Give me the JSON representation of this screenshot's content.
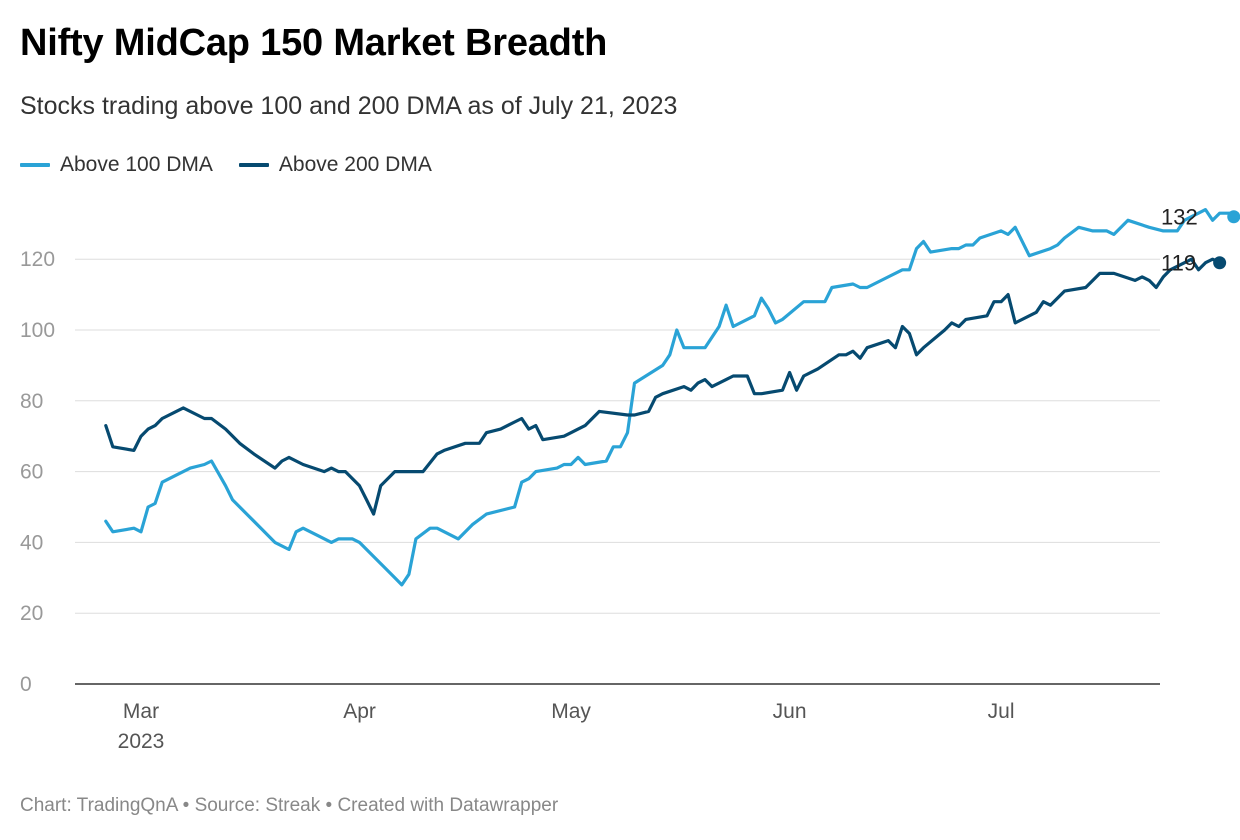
{
  "header": {
    "title": "Nifty MidCap 150 Market Breadth",
    "subtitle": "Stocks trading above 100 and 200 DMA as of July 21, 2023"
  },
  "footer": {
    "credit": "Chart: TradingQnA • Source: Streak • Created with Datawrapper"
  },
  "colors": {
    "above_100": "#2aa3d6",
    "above_200": "#064a70",
    "grid": "#dddddd",
    "axis": "#333333"
  },
  "chart_data": {
    "type": "line",
    "title": "Nifty MidCap 150 Market Breadth",
    "subtitle": "Stocks trading above 100 and 200 DMA as of July 21, 2023",
    "legend_position": "top-left",
    "grid": true,
    "ylim": [
      0,
      140
    ],
    "yticks": [
      0,
      20,
      40,
      60,
      80,
      100,
      120
    ],
    "xlim": [
      "2023-02-23",
      "2023-07-29"
    ],
    "xticks": [
      {
        "date": "2023-03-01",
        "label": "Mar",
        "sublabel": "2023"
      },
      {
        "date": "2023-04-01",
        "label": "Apr",
        "sublabel": ""
      },
      {
        "date": "2023-05-01",
        "label": "May",
        "sublabel": ""
      },
      {
        "date": "2023-06-01",
        "label": "Jun",
        "sublabel": ""
      },
      {
        "date": "2023-07-01",
        "label": "Jul",
        "sublabel": ""
      }
    ],
    "series": [
      {
        "name": "Above 100 DMA",
        "color": "#2aa3d6",
        "end_label": "132",
        "points": [
          [
            "2023-02-24",
            46
          ],
          [
            "2023-02-25",
            43
          ],
          [
            "2023-02-28",
            44
          ],
          [
            "2023-03-01",
            43
          ],
          [
            "2023-03-02",
            50
          ],
          [
            "2023-03-03",
            51
          ],
          [
            "2023-03-04",
            57
          ],
          [
            "2023-03-06",
            59
          ],
          [
            "2023-03-08",
            61
          ],
          [
            "2023-03-10",
            62
          ],
          [
            "2023-03-11",
            63
          ],
          [
            "2023-03-13",
            56
          ],
          [
            "2023-03-14",
            52
          ],
          [
            "2023-03-16",
            48
          ],
          [
            "2023-03-18",
            44
          ],
          [
            "2023-03-20",
            40
          ],
          [
            "2023-03-22",
            38
          ],
          [
            "2023-03-23",
            43
          ],
          [
            "2023-03-24",
            44
          ],
          [
            "2023-03-26",
            42
          ],
          [
            "2023-03-28",
            40
          ],
          [
            "2023-03-29",
            41
          ],
          [
            "2023-03-31",
            41
          ],
          [
            "2023-04-01",
            40
          ],
          [
            "2023-04-02",
            38
          ],
          [
            "2023-04-04",
            34
          ],
          [
            "2023-04-06",
            30
          ],
          [
            "2023-04-07",
            28
          ],
          [
            "2023-04-08",
            31
          ],
          [
            "2023-04-09",
            41
          ],
          [
            "2023-04-11",
            44
          ],
          [
            "2023-04-12",
            44
          ],
          [
            "2023-04-14",
            42
          ],
          [
            "2023-04-15",
            41
          ],
          [
            "2023-04-17",
            45
          ],
          [
            "2023-04-19",
            48
          ],
          [
            "2023-04-23",
            50
          ],
          [
            "2023-04-24",
            57
          ],
          [
            "2023-04-25",
            58
          ],
          [
            "2023-04-26",
            60
          ],
          [
            "2023-04-29",
            61
          ],
          [
            "2023-04-30",
            62
          ],
          [
            "2023-05-01",
            62
          ],
          [
            "2023-05-02",
            64
          ],
          [
            "2023-05-03",
            62
          ],
          [
            "2023-05-06",
            63
          ],
          [
            "2023-05-07",
            67
          ],
          [
            "2023-05-08",
            67
          ],
          [
            "2023-05-09",
            71
          ],
          [
            "2023-05-10",
            85
          ],
          [
            "2023-05-14",
            90
          ],
          [
            "2023-05-15",
            93
          ],
          [
            "2023-05-16",
            100
          ],
          [
            "2023-05-17",
            95
          ],
          [
            "2023-05-20",
            95
          ],
          [
            "2023-05-22",
            101
          ],
          [
            "2023-05-23",
            107
          ],
          [
            "2023-05-24",
            101
          ],
          [
            "2023-05-27",
            104
          ],
          [
            "2023-05-28",
            109
          ],
          [
            "2023-05-29",
            106
          ],
          [
            "2023-05-30",
            102
          ],
          [
            "2023-05-31",
            103
          ],
          [
            "2023-06-03",
            108
          ],
          [
            "2023-06-06",
            108
          ],
          [
            "2023-06-07",
            112
          ],
          [
            "2023-06-10",
            113
          ],
          [
            "2023-06-11",
            112
          ],
          [
            "2023-06-12",
            112
          ],
          [
            "2023-06-17",
            117
          ],
          [
            "2023-06-18",
            117
          ],
          [
            "2023-06-19",
            123
          ],
          [
            "2023-06-20",
            125
          ],
          [
            "2023-06-21",
            122
          ],
          [
            "2023-06-24",
            123
          ],
          [
            "2023-06-25",
            123
          ],
          [
            "2023-06-26",
            124
          ],
          [
            "2023-06-27",
            124
          ],
          [
            "2023-06-28",
            126
          ],
          [
            "2023-07-01",
            128
          ],
          [
            "2023-07-02",
            127
          ],
          [
            "2023-07-03",
            129
          ],
          [
            "2023-07-05",
            121
          ],
          [
            "2023-07-08",
            123
          ],
          [
            "2023-07-09",
            124
          ],
          [
            "2023-07-10",
            126
          ],
          [
            "2023-07-12",
            129
          ],
          [
            "2023-07-14",
            128
          ],
          [
            "2023-07-16",
            128
          ],
          [
            "2023-07-17",
            127
          ],
          [
            "2023-07-19",
            131
          ],
          [
            "2023-07-22",
            129
          ],
          [
            "2023-07-24",
            128
          ],
          [
            "2023-07-26",
            128
          ],
          [
            "2023-07-27",
            131
          ],
          [
            "2023-07-30",
            134
          ],
          [
            "2023-07-31",
            131
          ],
          [
            "2023-08-01",
            133
          ],
          [
            "2023-08-03",
            133
          ],
          [
            "2023-08-03",
            132
          ]
        ]
      },
      {
        "name": "Above 200 DMA",
        "color": "#064a70",
        "end_label": "119",
        "points": [
          [
            "2023-02-24",
            73
          ],
          [
            "2023-02-25",
            67
          ],
          [
            "2023-02-28",
            66
          ],
          [
            "2023-03-01",
            70
          ],
          [
            "2023-03-02",
            72
          ],
          [
            "2023-03-03",
            73
          ],
          [
            "2023-03-04",
            75
          ],
          [
            "2023-03-06",
            77
          ],
          [
            "2023-03-07",
            78
          ],
          [
            "2023-03-09",
            76
          ],
          [
            "2023-03-10",
            75
          ],
          [
            "2023-03-11",
            75
          ],
          [
            "2023-03-13",
            72
          ],
          [
            "2023-03-15",
            68
          ],
          [
            "2023-03-17",
            65
          ],
          [
            "2023-03-20",
            61
          ],
          [
            "2023-03-21",
            63
          ],
          [
            "2023-03-22",
            64
          ],
          [
            "2023-03-24",
            62
          ],
          [
            "2023-03-27",
            60
          ],
          [
            "2023-03-28",
            61
          ],
          [
            "2023-03-29",
            60
          ],
          [
            "2023-03-30",
            60
          ],
          [
            "2023-04-01",
            56
          ],
          [
            "2023-04-02",
            52
          ],
          [
            "2023-04-03",
            48
          ],
          [
            "2023-04-04",
            56
          ],
          [
            "2023-04-06",
            60
          ],
          [
            "2023-04-10",
            60
          ],
          [
            "2023-04-12",
            65
          ],
          [
            "2023-04-13",
            66
          ],
          [
            "2023-04-16",
            68
          ],
          [
            "2023-04-18",
            68
          ],
          [
            "2023-04-19",
            71
          ],
          [
            "2023-04-21",
            72
          ],
          [
            "2023-04-23",
            74
          ],
          [
            "2023-04-24",
            75
          ],
          [
            "2023-04-25",
            72
          ],
          [
            "2023-04-26",
            73
          ],
          [
            "2023-04-27",
            69
          ],
          [
            "2023-04-30",
            70
          ],
          [
            "2023-05-01",
            71
          ],
          [
            "2023-05-02",
            72
          ],
          [
            "2023-05-03",
            73
          ],
          [
            "2023-05-05",
            77
          ],
          [
            "2023-05-09",
            76
          ],
          [
            "2023-05-10",
            76
          ],
          [
            "2023-05-12",
            77
          ],
          [
            "2023-05-13",
            81
          ],
          [
            "2023-05-14",
            82
          ],
          [
            "2023-05-17",
            84
          ],
          [
            "2023-05-18",
            83
          ],
          [
            "2023-05-19",
            85
          ],
          [
            "2023-05-20",
            86
          ],
          [
            "2023-05-21",
            84
          ],
          [
            "2023-05-23",
            86
          ],
          [
            "2023-05-24",
            87
          ],
          [
            "2023-05-26",
            87
          ],
          [
            "2023-05-27",
            82
          ],
          [
            "2023-05-28",
            82
          ],
          [
            "2023-05-31",
            83
          ],
          [
            "2023-06-01",
            88
          ],
          [
            "2023-06-02",
            83
          ],
          [
            "2023-06-03",
            87
          ],
          [
            "2023-06-05",
            89
          ],
          [
            "2023-06-08",
            93
          ],
          [
            "2023-06-09",
            93
          ],
          [
            "2023-06-10",
            94
          ],
          [
            "2023-06-11",
            92
          ],
          [
            "2023-06-12",
            95
          ],
          [
            "2023-06-15",
            97
          ],
          [
            "2023-06-16",
            95
          ],
          [
            "2023-06-17",
            101
          ],
          [
            "2023-06-18",
            99
          ],
          [
            "2023-06-19",
            93
          ],
          [
            "2023-06-20",
            95
          ],
          [
            "2023-06-23",
            100
          ],
          [
            "2023-06-24",
            102
          ],
          [
            "2023-06-25",
            101
          ],
          [
            "2023-06-26",
            103
          ],
          [
            "2023-06-29",
            104
          ],
          [
            "2023-06-30",
            108
          ],
          [
            "2023-07-01",
            108
          ],
          [
            "2023-07-02",
            110
          ],
          [
            "2023-07-03",
            102
          ],
          [
            "2023-07-06",
            105
          ],
          [
            "2023-07-07",
            108
          ],
          [
            "2023-07-08",
            107
          ],
          [
            "2023-07-10",
            111
          ],
          [
            "2023-07-13",
            112
          ],
          [
            "2023-07-15",
            116
          ],
          [
            "2023-07-17",
            116
          ],
          [
            "2023-07-20",
            114
          ],
          [
            "2023-07-21",
            115
          ],
          [
            "2023-07-22",
            114
          ],
          [
            "2023-07-23",
            112
          ],
          [
            "2023-07-24",
            115
          ],
          [
            "2023-07-25",
            117
          ],
          [
            "2023-07-28",
            120
          ],
          [
            "2023-07-29",
            117
          ],
          [
            "2023-07-30",
            119
          ],
          [
            "2023-07-31",
            120
          ],
          [
            "2023-08-01",
            119
          ]
        ]
      }
    ]
  }
}
